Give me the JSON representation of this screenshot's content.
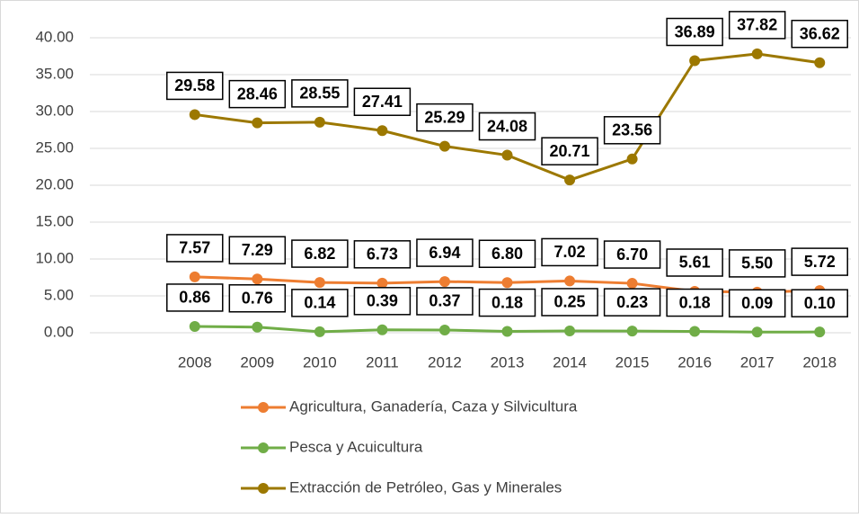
{
  "chart_data": {
    "type": "line",
    "categories": [
      "2008",
      "2009",
      "2010",
      "2011",
      "2012",
      "2013",
      "2014",
      "2015",
      "2016",
      "2017",
      "2018"
    ],
    "series": [
      {
        "name": "Agricultura, Ganadería, Caza y Silvicultura",
        "color": "#ED7D31",
        "values": [
          7.57,
          7.29,
          6.82,
          6.73,
          6.94,
          6.8,
          7.02,
          6.7,
          5.61,
          5.5,
          5.72
        ],
        "value_labels": [
          "7.57",
          "7.29",
          "6.82",
          "6.73",
          "6.94",
          "6.80",
          "7.02",
          "6.70",
          "5.61",
          "5.50",
          "5.72"
        ]
      },
      {
        "name": "Pesca y Acuicultura",
        "color": "#70AD47",
        "values": [
          0.86,
          0.76,
          0.14,
          0.39,
          0.37,
          0.18,
          0.25,
          0.23,
          0.18,
          0.09,
          0.1
        ],
        "value_labels": [
          "0.86",
          "0.76",
          "0.14",
          "0.39",
          "0.37",
          "0.18",
          "0.25",
          "0.23",
          "0.18",
          "0.09",
          "0.10"
        ]
      },
      {
        "name": "Extracción de Petróleo, Gas y Minerales",
        "color": "#9C7800",
        "values": [
          29.58,
          28.46,
          28.55,
          27.41,
          25.29,
          24.08,
          20.71,
          23.56,
          36.89,
          37.82,
          36.62
        ],
        "value_labels": [
          "29.58",
          "28.46",
          "28.55",
          "27.41",
          "25.29",
          "24.08",
          "20.71",
          "23.56",
          "36.89",
          "37.82",
          "36.62"
        ]
      }
    ],
    "ylim": [
      0,
      40
    ],
    "yticks": [
      {
        "value": 0,
        "label": "0.00"
      },
      {
        "value": 5,
        "label": "5.00"
      },
      {
        "value": 10,
        "label": "10.00"
      },
      {
        "value": 15,
        "label": "15.00"
      },
      {
        "value": 20,
        "label": "20.00"
      },
      {
        "value": 25,
        "label": "25.00"
      },
      {
        "value": 30,
        "label": "30.00"
      },
      {
        "value": 35,
        "label": "35.00"
      },
      {
        "value": 40,
        "label": "40.00"
      }
    ],
    "grid": true,
    "legend": "bottom"
  }
}
